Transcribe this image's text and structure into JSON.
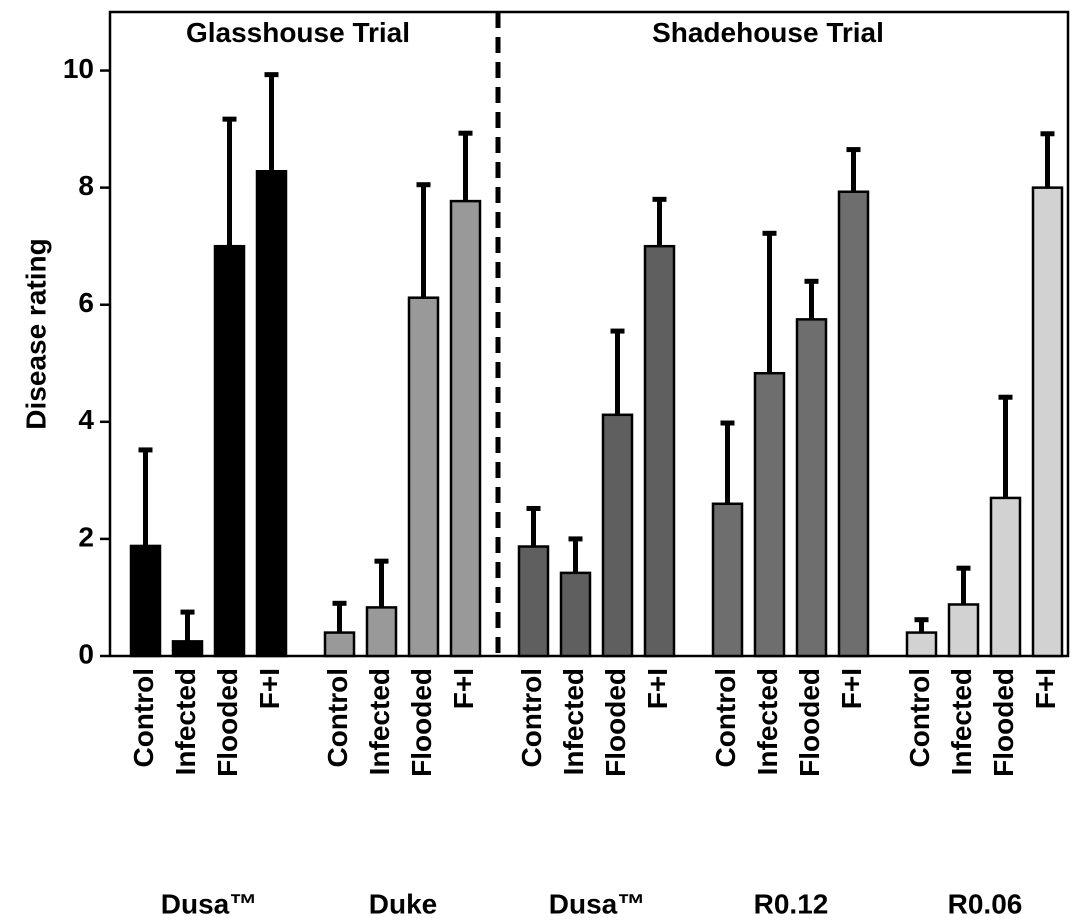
{
  "chart_data": {
    "type": "bar",
    "y_label": "Disease rating",
    "annotations": [
      "Glasshouse Trial",
      "Shadehouse Trial"
    ],
    "categories": [
      "Control",
      "Infected",
      "Flooded",
      "F+I"
    ],
    "series": [
      {
        "name": "Dusa™",
        "color": "#000000",
        "values": [
          1.88,
          0.25,
          7.0,
          8.28
        ],
        "errors": [
          1.64,
          0.5,
          2.17,
          1.65
        ]
      },
      {
        "name": "Duke",
        "color": "#999999",
        "values": [
          0.4,
          0.83,
          6.12,
          7.77
        ],
        "errors": [
          0.5,
          0.79,
          1.93,
          1.16
        ]
      },
      {
        "name": "Dusa™",
        "color": "#5f5f5f",
        "values": [
          1.87,
          1.42,
          4.12,
          7.0
        ],
        "errors": [
          0.65,
          0.58,
          1.43,
          0.8
        ]
      },
      {
        "name": "R0.12",
        "color": "#6e6e6e",
        "values": [
          2.6,
          4.83,
          5.75,
          7.93
        ],
        "errors": [
          1.38,
          2.39,
          0.65,
          0.72
        ]
      },
      {
        "name": "R0.06",
        "color": "#d2d2d2",
        "values": [
          0.4,
          0.88,
          2.7,
          8.0
        ],
        "errors": [
          0.22,
          0.62,
          1.72,
          0.92
        ]
      }
    ],
    "ylim": [
      0,
      11
    ],
    "yticks": [
      0,
      2,
      4,
      6,
      8,
      10
    ]
  }
}
